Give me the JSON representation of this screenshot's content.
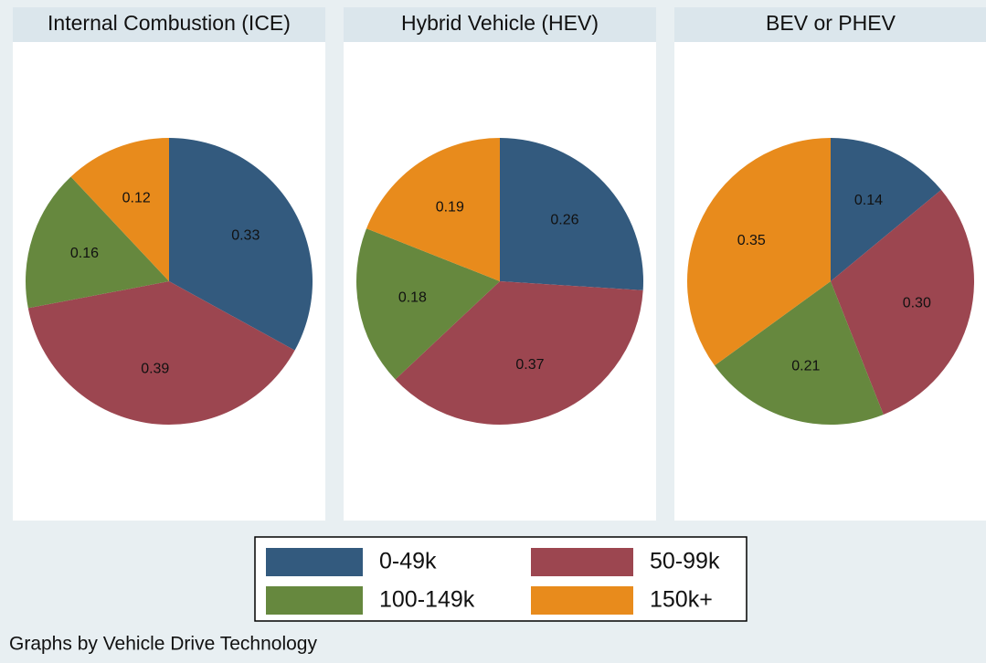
{
  "chart_data": [
    {
      "type": "pie",
      "title": "Internal Combustion (ICE)",
      "values": [
        0.33,
        0.39,
        0.16,
        0.12
      ],
      "value_labels": [
        "0.33",
        "0.39",
        "0.16",
        "0.12"
      ]
    },
    {
      "type": "pie",
      "title": "Hybrid Vehicle (HEV)",
      "values": [
        0.26,
        0.37,
        0.18,
        0.19
      ],
      "value_labels": [
        "0.26",
        "0.37",
        "0.18",
        "0.19"
      ]
    },
    {
      "type": "pie",
      "title": "BEV or PHEV",
      "values": [
        0.14,
        0.3,
        0.21,
        0.35
      ],
      "value_labels": [
        "0.14",
        "0.30",
        "0.21",
        "0.35"
      ]
    }
  ],
  "legend": {
    "categories": [
      "0-49k",
      "50-99k",
      "100-149k",
      "150k+"
    ],
    "colors": [
      "#335a7e",
      "#9c4650",
      "#66883e",
      "#e88b1c"
    ]
  },
  "note": "Graphs by Vehicle Drive Technology"
}
